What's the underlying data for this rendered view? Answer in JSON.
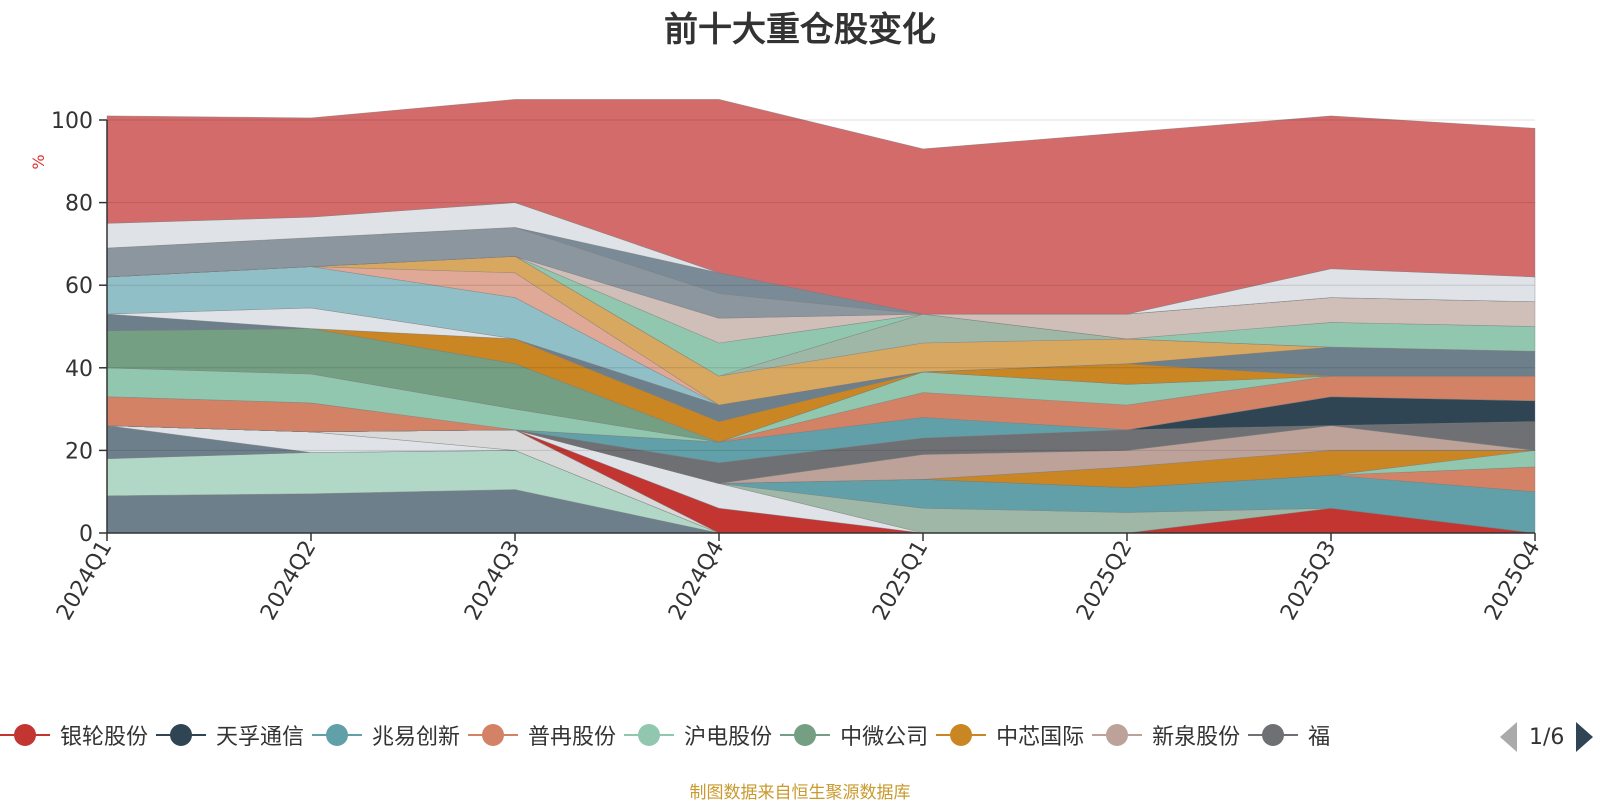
{
  "chart_data": {
    "type": "area",
    "title": "前十大重仓股变化",
    "ylabel": "%",
    "ylim": [
      0,
      100
    ],
    "yticks": [
      0,
      20,
      40,
      60,
      80,
      100
    ],
    "grid": true,
    "stacked": true,
    "categories": [
      "2024Q1",
      "2024Q2",
      "2024Q3",
      "2024Q4",
      "2025Q1",
      "2025Q2",
      "2025Q3",
      "2025Q4"
    ],
    "series": [
      {
        "name": "",
        "color": "#6e7f8c",
        "values": [
          9,
          9.5,
          10.5,
          0,
          0,
          0,
          0,
          0
        ]
      },
      {
        "name": "",
        "color": "#b1d8c6",
        "values": [
          9,
          10,
          9.5,
          0,
          0,
          0,
          0,
          0
        ]
      },
      {
        "name": "",
        "color": "#6e7f8c",
        "values": [
          8,
          0,
          0,
          0,
          0,
          0,
          0,
          0
        ]
      },
      {
        "name": "",
        "color": "#dfe3e8",
        "values": [
          0,
          5,
          0,
          0,
          0,
          0,
          0,
          0
        ]
      },
      {
        "name": "",
        "color": "#d9d9d9",
        "values": [
          0,
          0,
          5,
          0,
          0,
          0,
          0,
          0
        ]
      },
      {
        "name": "银轮股份",
        "color": "#c23531",
        "values": [
          0,
          0,
          0,
          6,
          0,
          0,
          6,
          0
        ]
      },
      {
        "name": "",
        "color": "#dfe3e8",
        "values": [
          0,
          0,
          0,
          6,
          0,
          0,
          0,
          0
        ]
      },
      {
        "name": "",
        "color": "#9fb7a6",
        "values": [
          0,
          0,
          0,
          0,
          6,
          5,
          0,
          0
        ]
      },
      {
        "name": "兆易创新",
        "color": "#61a0a8",
        "values": [
          0,
          0,
          0,
          0,
          7,
          6,
          8,
          10
        ]
      },
      {
        "name": "普冉股份",
        "color": "#d48265",
        "values": [
          0,
          0,
          0,
          0,
          0,
          0,
          0,
          6
        ]
      },
      {
        "name": "沪电股份",
        "color": "#91c7ae",
        "values": [
          0,
          0,
          0,
          0,
          0,
          0,
          0,
          4
        ]
      },
      {
        "name": "中芯国际",
        "color": "#ca8622",
        "values": [
          0,
          0,
          0,
          0,
          0,
          5,
          6,
          0
        ]
      },
      {
        "name": "新泉股份",
        "color": "#bda29a",
        "values": [
          0,
          0,
          0,
          0,
          6,
          4,
          6,
          0
        ]
      },
      {
        "name": "",
        "color": "#6e7074",
        "values": [
          0,
          0,
          0,
          5,
          4,
          5,
          0,
          7
        ]
      },
      {
        "name": "天孚通信",
        "color": "#2f4554",
        "values": [
          0,
          0,
          0,
          0,
          0,
          0,
          7,
          5
        ]
      },
      {
        "name": "",
        "color": "#61a0a8",
        "values": [
          0,
          0,
          0,
          5,
          5,
          0,
          0,
          0
        ]
      },
      {
        "name": "",
        "color": "#d48265",
        "values": [
          7,
          7,
          0,
          0,
          6,
          6,
          5,
          6
        ]
      },
      {
        "name": "",
        "color": "#91c7ae",
        "values": [
          7,
          7,
          5,
          0,
          5,
          5,
          0,
          0
        ]
      },
      {
        "name": "",
        "color": "#749f83",
        "values": [
          9,
          11,
          11,
          0,
          0,
          0,
          0,
          0
        ]
      },
      {
        "name": "",
        "color": "#ca8622",
        "values": [
          0,
          0,
          6,
          5,
          0,
          5,
          0,
          0
        ]
      },
      {
        "name": "",
        "color": "#6e7f8c",
        "values": [
          4,
          0,
          0,
          4,
          0,
          0,
          7,
          6
        ]
      },
      {
        "name": "",
        "color": "#dfe3e8",
        "values": [
          0,
          5,
          0,
          0,
          0,
          0,
          0,
          0
        ]
      },
      {
        "name": "",
        "color": "#91bfc7",
        "values": [
          9,
          10,
          10,
          0,
          0,
          0,
          0,
          0
        ]
      },
      {
        "name": "",
        "color": "#e0a896",
        "values": [
          0,
          0,
          6,
          0,
          0,
          0,
          0,
          0
        ]
      },
      {
        "name": "",
        "color": "#d8a860",
        "values": [
          0,
          0,
          4,
          7,
          7,
          6,
          0,
          0
        ]
      },
      {
        "name": "",
        "color": "#9fb7a6",
        "values": [
          0,
          0,
          0,
          0,
          7,
          0,
          0,
          0
        ]
      },
      {
        "name": "",
        "color": "#91c7ae",
        "values": [
          0,
          0,
          0,
          8,
          0,
          0,
          6,
          6
        ]
      },
      {
        "name": "",
        "color": "#d0beb8",
        "values": [
          0,
          0,
          0,
          6,
          0,
          6,
          6,
          6
        ]
      },
      {
        "name": "",
        "color": "#8c969e",
        "values": [
          7,
          7,
          7,
          6,
          0,
          0,
          0,
          0
        ]
      },
      {
        "name": "",
        "color": "#7a8b97",
        "values": [
          0,
          0,
          0,
          5,
          0,
          0,
          0,
          0
        ]
      },
      {
        "name": "",
        "color": "#dfe3e8",
        "values": [
          6,
          5,
          6,
          0,
          0,
          0,
          7,
          6
        ]
      },
      {
        "name": "",
        "color": "#d36b6b",
        "values": [
          26,
          24,
          25,
          42,
          40,
          44,
          37,
          36
        ]
      }
    ]
  },
  "legend": {
    "items": [
      {
        "label": "银轮股份",
        "color": "#c23531"
      },
      {
        "label": "天孚通信",
        "color": "#2f4554"
      },
      {
        "label": "兆易创新",
        "color": "#61a0a8"
      },
      {
        "label": "普冉股份",
        "color": "#d48265"
      },
      {
        "label": "沪电股份",
        "color": "#91c7ae"
      },
      {
        "label": "中微公司",
        "color": "#749f83"
      },
      {
        "label": "中芯国际",
        "color": "#ca8622"
      },
      {
        "label": "新泉股份",
        "color": "#bda29a"
      },
      {
        "label": "福",
        "color": "#6e7074"
      }
    ],
    "page": "1/6"
  },
  "footer": {
    "source": "制图数据来自恒生聚源数据库"
  }
}
